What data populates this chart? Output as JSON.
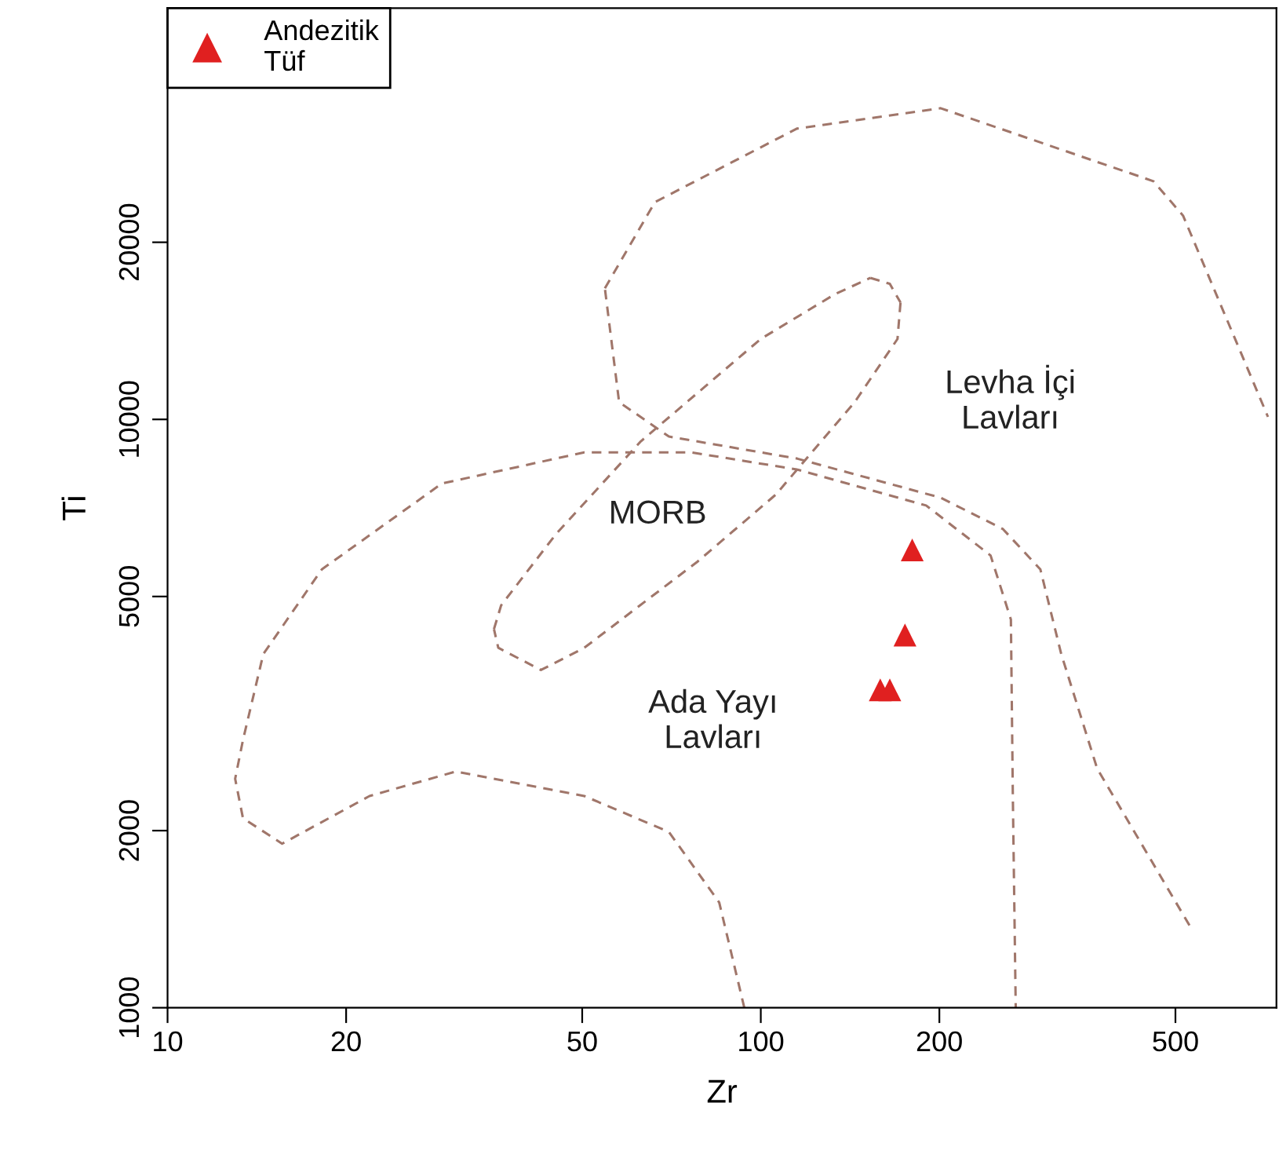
{
  "chart_data": {
    "type": "scatter",
    "xlabel": "Zr",
    "ylabel": "Ti",
    "log": "xy",
    "xlim": [
      10,
      740
    ],
    "ylim": [
      1000,
      50000
    ],
    "xticks": [
      10,
      20,
      50,
      100,
      200,
      500
    ],
    "yticks": [
      1000,
      2000,
      5000,
      10000,
      20000
    ],
    "grid": false,
    "legend": "top left",
    "marker": "triangle",
    "series": [
      {
        "type": "line",
        "line_style": "dashed",
        "marker": "none",
        "color": "#a0766a",
        "x": [
          528,
          369,
          321,
          296,
          256,
          201,
          115,
          70.0,
          57.7,
          54.6
        ],
        "values": [
          1380,
          2550,
          3990,
          5560,
          6510,
          7360,
          8580,
          9350,
          10700,
          16700
        ]
      },
      {
        "type": "line",
        "line_style": "dashed",
        "marker": "none",
        "color": "#a0766a",
        "x": [
          54.6,
          66.3,
          115,
          201,
          459,
          515,
          716
        ],
        "values": [
          16700,
          23400,
          31200,
          33800,
          25400,
          22200,
          10100
        ]
      },
      {
        "type": "line",
        "line_style": "dashed",
        "marker": "none",
        "color": "#a0766a",
        "x": [
          153,
          165,
          172
        ],
        "values": [
          17400,
          17000,
          15800
        ]
      },
      {
        "type": "line",
        "line_style": "dashed",
        "marker": "none",
        "color": "#a0766a",
        "x": [
          172,
          170,
          144,
          106,
          78.2,
          50.4,
          42.6,
          36.1,
          35.5
        ],
        "values": [
          15800,
          13700,
          10700,
          7450,
          5730,
          4090,
          3750,
          4090,
          4400
        ]
      },
      {
        "type": "line",
        "line_style": "dashed",
        "marker": "none",
        "color": "#a0766a",
        "x": [
          35.5,
          36.5,
          45.2,
          62.8,
          100,
          133,
          153
        ],
        "values": [
          4400,
          4830,
          6390,
          9180,
          13700,
          16300,
          17400
        ]
      },
      {
        "type": "line",
        "line_style": "dashed",
        "marker": "none",
        "color": "#a0766a",
        "x": [
          93.8,
          85.1,
          70.0,
          50.4,
          30.6,
          21.9,
          15.6,
          13.4,
          13.0,
          13.4,
          14.5,
          18.2,
          29.0,
          50.4,
          76.3,
          115,
          190,
          244,
          264,
          266,
          269
        ],
        "values": [
          1000,
          1510,
          1990,
          2290,
          2520,
          2290,
          1900,
          2100,
          2450,
          2850,
          3990,
          5560,
          7780,
          8790,
          8790,
          8220,
          7140,
          5870,
          4570,
          2290,
          1000
        ]
      },
      {
        "name": "Andezitik\nTüf",
        "color": "#e02020",
        "x": [
          180,
          175,
          159,
          165
        ],
        "values": [
          6000,
          4300,
          3470,
          3470
        ]
      }
    ],
    "annotations": [
      "MORB",
      "Levha İçi\nLavları",
      "Ada Yayı\nLavları"
    ]
  }
}
